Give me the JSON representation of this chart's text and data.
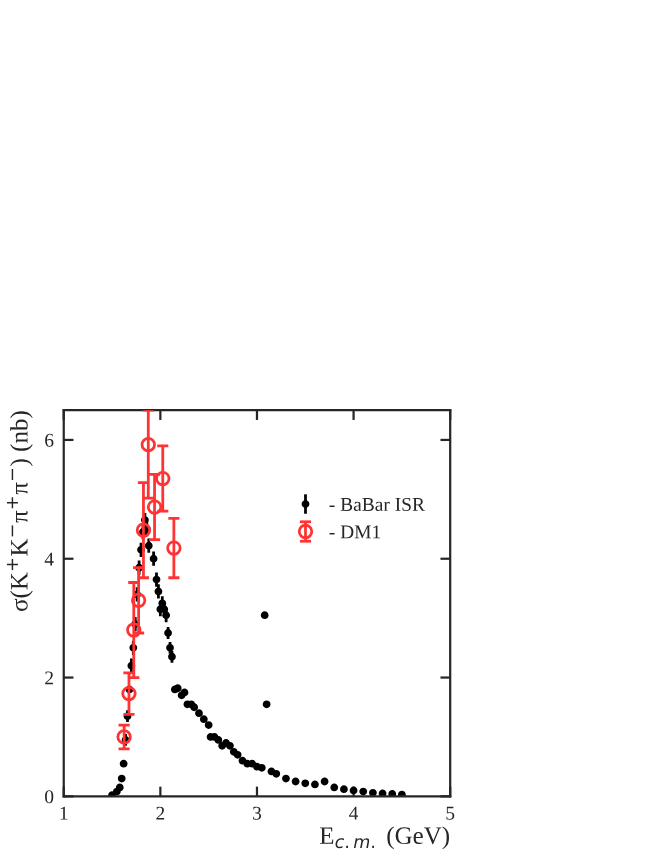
{
  "chart_data": {
    "type": "scatter",
    "xlabel": "E$_{c.m.}$ (GeV)",
    "ylabel": "σ(K$^{+}$K$^{−}$π$^{+}$π$^{−}$) (nb)",
    "xlim": [
      1,
      5
    ],
    "xticks": [
      1,
      2,
      3,
      4,
      5
    ],
    "ylim": [
      0,
      6.5
    ],
    "yticks": [
      0,
      2,
      4,
      6
    ],
    "legend": "top right",
    "grid": false,
    "series": [
      {
        "name": "- BaBar ISR",
        "color": "#000000",
        "marker": "circle",
        "x": [
          1.5,
          1.55,
          1.58,
          1.6,
          1.62,
          1.64,
          1.66,
          1.68,
          1.7,
          1.72,
          1.74,
          1.76,
          1.78,
          1.8,
          1.82,
          1.84,
          1.86,
          1.88,
          1.93,
          1.96,
          1.98,
          2.0,
          2.02,
          2.04,
          2.06,
          2.08,
          2.1,
          2.12,
          2.15,
          2.18,
          2.22,
          2.25,
          2.28,
          2.32,
          2.35,
          2.4,
          2.45,
          2.5,
          2.52,
          2.56,
          2.6,
          2.64,
          2.68,
          2.72,
          2.76,
          2.8,
          2.85,
          2.9,
          2.95,
          3.0,
          3.05,
          3.08,
          3.1,
          3.15,
          3.2,
          3.3,
          3.4,
          3.5,
          3.6,
          3.7,
          3.8,
          3.9,
          4.0,
          4.1,
          4.2,
          4.3,
          4.4,
          4.5
        ],
        "values": [
          0.02,
          0.08,
          0.15,
          0.3,
          0.55,
          0.95,
          1.35,
          1.8,
          2.2,
          2.5,
          2.9,
          3.4,
          3.85,
          4.15,
          4.45,
          4.65,
          4.5,
          4.22,
          4.0,
          3.65,
          3.45,
          3.15,
          3.25,
          3.15,
          3.05,
          2.75,
          2.5,
          2.35,
          1.8,
          1.82,
          1.7,
          1.75,
          1.55,
          1.55,
          1.5,
          1.4,
          1.3,
          1.2,
          1.0,
          1.0,
          0.95,
          0.85,
          0.9,
          0.85,
          0.75,
          0.7,
          0.6,
          0.55,
          0.55,
          0.5,
          0.48,
          3.05,
          1.55,
          0.42,
          0.38,
          0.3,
          0.25,
          0.22,
          0.2,
          0.25,
          0.15,
          0.12,
          0.1,
          0.08,
          0.06,
          0.05,
          0.04,
          0.03
        ],
        "errors": [
          null,
          null,
          null,
          null,
          null,
          0.1,
          0.1,
          null,
          0.12,
          0.12,
          0.12,
          0.12,
          0.12,
          0.12,
          0.12,
          0.12,
          0.12,
          0.12,
          0.12,
          0.12,
          0.12,
          0.12,
          0.12,
          0.12,
          0.12,
          0.1,
          0.1,
          0.1,
          null,
          null,
          null,
          null,
          null,
          null,
          null,
          null,
          null,
          null,
          null,
          null,
          null,
          null,
          null,
          null,
          null,
          null,
          null,
          null,
          null,
          null,
          null,
          null,
          null,
          null,
          null,
          null,
          null,
          null,
          null,
          null,
          null,
          null,
          null,
          null,
          null,
          null,
          null,
          null
        ]
      },
      {
        "name": "- DM1",
        "color": "#ff3333",
        "marker": "open circle",
        "x": [
          1.625,
          1.675,
          1.725,
          1.775,
          1.825,
          1.875,
          1.94,
          2.025,
          2.14
        ],
        "values": [
          1.0,
          1.73,
          2.8,
          3.3,
          4.48,
          5.92,
          4.87,
          5.35,
          4.18
        ],
        "errors": [
          0.2,
          0.35,
          0.8,
          0.55,
          0.8,
          [
            5.02,
            6.5
          ],
          0.55,
          0.55,
          0.5
        ]
      }
    ]
  }
}
